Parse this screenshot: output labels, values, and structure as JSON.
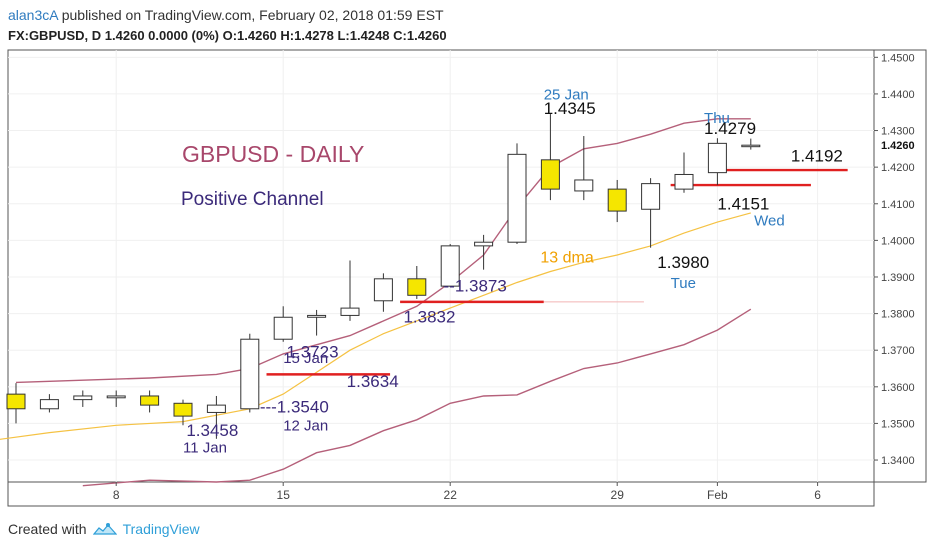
{
  "header": {
    "user": "alan3cA",
    "published_text": " published on TradingView.com, February 02, 2018 01:59 EST",
    "symbol_line": "FX:GBPUSD, D  1.4260 0.0000 (0%) O:1.4260 H:1.4278 L:1.4248 C:1.4260"
  },
  "footer": {
    "created_with": "Created with",
    "brand": "TradingView",
    "brand_icon": "tradingview-logo-icon"
  },
  "colors": {
    "up_candle": "#ffffff",
    "down_candle": "#f5e600",
    "candle_border": "#333333",
    "channel": "#b5607a",
    "dma": "#f5c243",
    "support_line": "#e02020",
    "title": "#a8476b",
    "subtitle": "#3b2a7a",
    "annotation": "#3b2a7a",
    "day_label": "#2f7bbf",
    "dma_label": "#f0a000"
  },
  "chart_data": {
    "type": "candlestick",
    "title": "GBPUSD - DAILY",
    "subtitle": "Positive Channel",
    "ylim": [
      1.334,
      1.452
    ],
    "y_ticks": [
      "1.4500",
      "1.4400",
      "1.4300",
      "1.4200",
      "1.4100",
      "1.4000",
      "1.3900",
      "1.3800",
      "1.3700",
      "1.3600",
      "1.3500",
      "1.3400"
    ],
    "last_price_label": "1.4260",
    "last_price": 1.426,
    "x_ticks": [
      {
        "label": "8",
        "day": 3
      },
      {
        "label": "15",
        "day": 8
      },
      {
        "label": "22",
        "day": 13
      },
      {
        "label": "29",
        "day": 18
      },
      {
        "label": "Feb",
        "day": 21
      },
      {
        "label": "6",
        "day": 24
      }
    ],
    "candles": [
      {
        "day": 0,
        "open": 1.358,
        "high": 1.361,
        "low": 1.35,
        "close": 1.354
      },
      {
        "day": 1,
        "open": 1.354,
        "high": 1.358,
        "low": 1.353,
        "close": 1.3565
      },
      {
        "day": 2,
        "open": 1.3565,
        "high": 1.359,
        "low": 1.3545,
        "close": 1.3575
      },
      {
        "day": 3,
        "open": 1.357,
        "high": 1.359,
        "low": 1.3545,
        "close": 1.3575
      },
      {
        "day": 4,
        "open": 1.3575,
        "high": 1.359,
        "low": 1.353,
        "close": 1.355
      },
      {
        "day": 5,
        "open": 1.3555,
        "high": 1.3565,
        "low": 1.3495,
        "close": 1.352
      },
      {
        "day": 6,
        "open": 1.353,
        "high": 1.3575,
        "low": 1.3458,
        "close": 1.355
      },
      {
        "day": 7,
        "open": 1.354,
        "high": 1.3745,
        "low": 1.353,
        "close": 1.373
      },
      {
        "day": 8,
        "open": 1.373,
        "high": 1.382,
        "low": 1.3723,
        "close": 1.379
      },
      {
        "day": 9,
        "open": 1.379,
        "high": 1.381,
        "low": 1.374,
        "close": 1.3795
      },
      {
        "day": 10,
        "open": 1.3795,
        "high": 1.3945,
        "low": 1.378,
        "close": 1.3815
      },
      {
        "day": 11,
        "open": 1.3835,
        "high": 1.391,
        "low": 1.3805,
        "close": 1.3895
      },
      {
        "day": 12,
        "open": 1.3895,
        "high": 1.393,
        "low": 1.384,
        "close": 1.385
      },
      {
        "day": 13,
        "open": 1.3875,
        "high": 1.399,
        "low": 1.3873,
        "close": 1.3985
      },
      {
        "day": 14,
        "open": 1.3985,
        "high": 1.4015,
        "low": 1.392,
        "close": 1.3995
      },
      {
        "day": 15,
        "open": 1.3995,
        "high": 1.4265,
        "low": 1.399,
        "close": 1.4235
      },
      {
        "day": 16,
        "open": 1.422,
        "high": 1.4345,
        "low": 1.411,
        "close": 1.414
      },
      {
        "day": 17,
        "open": 1.4135,
        "high": 1.4285,
        "low": 1.411,
        "close": 1.4165
      },
      {
        "day": 18,
        "open": 1.414,
        "high": 1.4165,
        "low": 1.405,
        "close": 1.408
      },
      {
        "day": 19,
        "open": 1.4085,
        "high": 1.417,
        "low": 1.398,
        "close": 1.4155
      },
      {
        "day": 20,
        "open": 1.414,
        "high": 1.424,
        "low": 1.413,
        "close": 1.418
      },
      {
        "day": 21,
        "open": 1.4185,
        "high": 1.4279,
        "low": 1.4151,
        "close": 1.4265
      },
      {
        "day": 22,
        "open": 1.426,
        "high": 1.4278,
        "low": 1.4248,
        "close": 1.426
      }
    ],
    "series": [
      {
        "kind": "channel-upper",
        "points": [
          [
            0,
            1.3612
          ],
          [
            2,
            1.3618
          ],
          [
            4,
            1.3624
          ],
          [
            6,
            1.3634
          ],
          [
            7,
            1.365
          ],
          [
            8,
            1.369
          ],
          [
            10,
            1.374
          ],
          [
            12,
            1.382
          ],
          [
            13,
            1.3885
          ],
          [
            14,
            1.396
          ],
          [
            15,
            1.409
          ],
          [
            16,
            1.42
          ],
          [
            17,
            1.425
          ],
          [
            18,
            1.4265
          ],
          [
            19,
            1.429
          ],
          [
            20,
            1.432
          ],
          [
            21,
            1.4332
          ],
          [
            22,
            1.4332
          ]
        ]
      },
      {
        "kind": "channel-lower",
        "points": [
          [
            2,
            1.333
          ],
          [
            4,
            1.3345
          ],
          [
            6,
            1.334
          ],
          [
            7,
            1.3345
          ],
          [
            8,
            1.3375
          ],
          [
            9,
            1.342
          ],
          [
            10,
            1.344
          ],
          [
            11,
            1.348
          ],
          [
            12,
            1.351
          ],
          [
            13,
            1.3555
          ],
          [
            14,
            1.3575
          ],
          [
            15,
            1.3578
          ],
          [
            16,
            1.3615
          ],
          [
            17,
            1.365
          ],
          [
            18,
            1.3665
          ],
          [
            19,
            1.369
          ],
          [
            20,
            1.3715
          ],
          [
            21,
            1.3755
          ],
          [
            22,
            1.3812
          ]
        ]
      },
      {
        "name": "13 dma",
        "kind": "dma",
        "points": [
          [
            -1,
            1.345
          ],
          [
            1,
            1.3475
          ],
          [
            3,
            1.3495
          ],
          [
            5,
            1.3505
          ],
          [
            7,
            1.354
          ],
          [
            8,
            1.358
          ],
          [
            9,
            1.364
          ],
          [
            10,
            1.37
          ],
          [
            11,
            1.3745
          ],
          [
            12,
            1.378
          ],
          [
            13,
            1.3815
          ],
          [
            14,
            1.385
          ],
          [
            15,
            1.3885
          ],
          [
            16,
            1.3915
          ],
          [
            17,
            1.394
          ],
          [
            18,
            1.396
          ],
          [
            19,
            1.3985
          ],
          [
            20,
            1.402
          ],
          [
            21,
            1.405
          ],
          [
            22,
            1.4075
          ]
        ]
      }
    ],
    "support_lines": [
      {
        "value": 1.3634,
        "from": 7.5,
        "to": 11.2
      },
      {
        "value": 1.3832,
        "from": 11.5,
        "to": 15.8
      },
      {
        "value": 1.4151,
        "from": 19.6,
        "to": 23.8
      },
      {
        "value": 1.4192,
        "from": 21.0,
        "to": 24.9
      }
    ],
    "faint_lines": [
      {
        "value": 1.3832,
        "from": 15.8,
        "to": 18.8
      }
    ],
    "annotations": [
      {
        "text": "1.3458",
        "day": 5.1,
        "price": 1.3465,
        "color": "annotation",
        "size": 17
      },
      {
        "text": "11 Jan",
        "day": 5.0,
        "price": 1.342,
        "color": "annotation",
        "size": 15
      },
      {
        "text": "---1.3540",
        "day": 7.3,
        "price": 1.353,
        "color": "annotation",
        "size": 17
      },
      {
        "text": "12 Jan",
        "day": 8.0,
        "price": 1.348,
        "color": "annotation",
        "size": 15
      },
      {
        "text": "1.3723",
        "day": 8.1,
        "price": 1.368,
        "color": "annotation",
        "size": 17
      },
      {
        "text": "15 Jan",
        "day": 8.0,
        "price": 1.3665,
        "color": "annotation",
        "size": 15
      },
      {
        "text": "1.3634",
        "day": 9.9,
        "price": 1.36,
        "color": "annotation",
        "size": 17
      },
      {
        "text": "1.3832",
        "day": 11.6,
        "price": 1.3775,
        "color": "annotation",
        "size": 17
      },
      {
        "text": "--1.3873",
        "day": 12.8,
        "price": 1.386,
        "color": "annotation",
        "size": 17
      },
      {
        "text": "25 Jan",
        "day": 15.8,
        "price": 1.4385,
        "color": "day_label",
        "size": 15
      },
      {
        "text": "1.4345",
        "day": 15.8,
        "price": 1.4345,
        "color": "black",
        "size": 17
      },
      {
        "text": "13 dma",
        "day": 15.7,
        "price": 1.394,
        "color": "dma_label",
        "size": 16
      },
      {
        "text": "1.3980",
        "day": 19.2,
        "price": 1.3925,
        "color": "black",
        "size": 17
      },
      {
        "text": "Tue",
        "day": 19.6,
        "price": 1.387,
        "color": "day_label",
        "size": 15
      },
      {
        "text": "Thu",
        "day": 20.6,
        "price": 1.432,
        "color": "day_label",
        "size": 15
      },
      {
        "text": "1.4279",
        "day": 20.6,
        "price": 1.429,
        "color": "black",
        "size": 17
      },
      {
        "text": "1.4192",
        "day": 23.2,
        "price": 1.4215,
        "color": "black",
        "size": 17
      },
      {
        "text": "1.4151",
        "day": 21.0,
        "price": 1.4085,
        "color": "black",
        "size": 17
      },
      {
        "text": "Wed",
        "day": 22.1,
        "price": 1.404,
        "color": "day_label",
        "size": 15
      }
    ]
  }
}
